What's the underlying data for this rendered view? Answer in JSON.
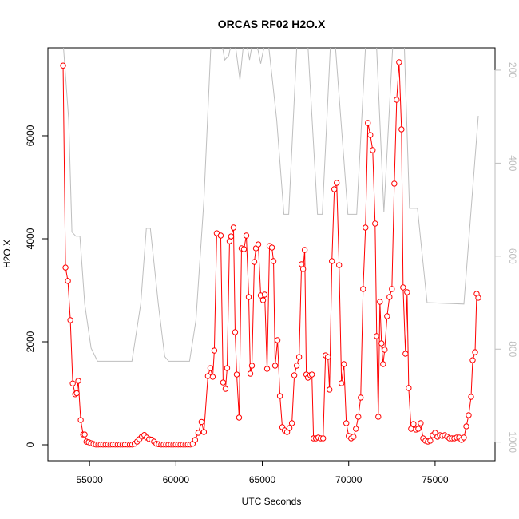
{
  "chart_data": {
    "type": "line",
    "title": "ORCAS RF02 H2O.X",
    "x_label": "UTC Seconds",
    "y_label": "H2O.X",
    "xlim": [
      52590,
      78470
    ],
    "xticks": [
      55000,
      60000,
      65000,
      70000,
      75000
    ],
    "ylim": [
      -310,
      7705
    ],
    "yticks": [
      0,
      2000,
      4000,
      6000
    ],
    "y2lim": [
      1040,
      152
    ],
    "y2ticks": [
      200,
      400,
      600,
      800,
      1000
    ],
    "series": [
      {
        "color": "#ff0000",
        "markers": true,
        "x": [
          53470,
          53610,
          53750,
          53890,
          54030,
          54170,
          54260,
          54350,
          54490,
          54630,
          54720,
          54820,
          54950,
          55090,
          55230,
          55370,
          55510,
          55650,
          55790,
          55930,
          56070,
          56210,
          56350,
          56490,
          56630,
          56770,
          56910,
          57050,
          57190,
          57330,
          57470,
          57610,
          57750,
          57890,
          58030,
          58170,
          58310,
          58450,
          58590,
          58730,
          58870,
          59010,
          59150,
          59290,
          59430,
          59570,
          59710,
          59850,
          59990,
          60130,
          60270,
          60410,
          60550,
          60690,
          60830,
          60970,
          61111,
          61296,
          61481,
          61620,
          61852,
          61991,
          62130,
          62222,
          62361,
          62593,
          62731,
          62870,
          62963,
          63102,
          63194,
          63333,
          63426,
          63519,
          63657,
          63796,
          63935,
          64074,
          64213,
          64306,
          64398,
          64537,
          64630,
          64769,
          64907,
          65046,
          65139,
          65278,
          65417,
          65556,
          65648,
          65741,
          65880,
          66019,
          66157,
          66296,
          66435,
          66574,
          66713,
          66852,
          66991,
          67130,
          67269,
          67361,
          67454,
          67546,
          67639,
          67778,
          67870,
          67963,
          68102,
          68241,
          68380,
          68519,
          68657,
          68796,
          68889,
          69028,
          69167,
          69306,
          69444,
          69583,
          69722,
          69861,
          70000,
          70139,
          70278,
          70417,
          70556,
          70694,
          70833,
          70972,
          71111,
          71250,
          71389,
          71528,
          71620,
          71713,
          71806,
          71898,
          71991,
          72083,
          72222,
          72361,
          72500,
          72639,
          72778,
          72917,
          73056,
          73148,
          73287,
          73380,
          73472,
          73611,
          73750,
          73889,
          74028,
          74167,
          74306,
          74444,
          74583,
          74722,
          74861,
          75000,
          75139,
          75278,
          75417,
          75556,
          75694,
          75833,
          75972,
          76111,
          76250,
          76389,
          76528,
          76667,
          76806,
          76944,
          77083,
          77176,
          77315,
          77407,
          77500
        ],
        "values": [
          7360,
          3440,
          3180,
          2420,
          1190,
          980,
          1000,
          1240,
          480,
          200,
          200,
          60,
          50,
          30,
          15,
          5,
          5,
          5,
          5,
          5,
          5,
          5,
          5,
          5,
          5,
          5,
          5,
          5,
          5,
          5,
          5,
          20,
          60,
          110,
          160,
          190,
          140,
          110,
          100,
          60,
          20,
          10,
          5,
          5,
          5,
          5,
          5,
          5,
          5,
          5,
          5,
          5,
          5,
          5,
          5,
          20,
          93,
          233,
          443,
          248,
          1333,
          1488,
          1318,
          1829,
          4108,
          4062,
          1209,
          1085,
          1488,
          3953,
          4046,
          4217,
          2186,
          1364,
          527,
          3814,
          3798,
          4062,
          2868,
          1380,
          1535,
          3550,
          3814,
          3891,
          2899,
          2806,
          2915,
          1473,
          3860,
          3829,
          3566,
          1535,
          2031,
          946,
          341,
          279,
          248,
          326,
          419,
          1349,
          1535,
          1705,
          3504,
          3411,
          3783,
          1364,
          1302,
          1349,
          1364,
          124,
          124,
          140,
          124,
          124,
          1736,
          1705,
          1070,
          3566,
          4961,
          5085,
          3488,
          1194,
          1566,
          419,
          171,
          124,
          155,
          310,
          543,
          915,
          3023,
          4217,
          6248,
          6016,
          5721,
          4295,
          2109,
          543,
          2775,
          1969,
          1566,
          1845,
          2496,
          2868,
          3023,
          5070,
          6698,
          7426,
          6124,
          3054,
          1767,
          2961,
          1101,
          310,
          403,
          295,
          310,
          419,
          124,
          78,
          62,
          78,
          186,
          233,
          155,
          186,
          171,
          186,
          155,
          124,
          124,
          124,
          140,
          140,
          93,
          140,
          357,
          574,
          930,
          1643,
          1798,
          2930,
          2853
        ]
      },
      {
        "color": "#bebebe",
        "axis": "y2",
        "markers": false,
        "x": [
          53426,
          53796,
          53981,
          54213,
          54444,
          54722,
          55093,
          55463,
          57454,
          57963,
          58287,
          58519,
          58981,
          59352,
          59583,
          60787,
          61157,
          61620,
          62037,
          62546,
          62824,
          63056,
          63333,
          63704,
          63981,
          64259,
          64537,
          64907,
          65278,
          65833,
          66250,
          66528,
          67037,
          67593,
          68194,
          68472,
          68981,
          69167,
          69722,
          69954,
          70463,
          71019,
          71574,
          72037,
          72593,
          73194,
          73519,
          73981,
          74537,
          76667,
          77500
        ],
        "values": [
          117,
          307,
          548,
          557,
          557,
          703,
          798,
          826,
          826,
          703,
          540,
          540,
          703,
          816,
          826,
          826,
          738,
          479,
          134,
          117,
          178,
          169,
          117,
          221,
          117,
          178,
          117,
          186,
          117,
          307,
          510,
          510,
          117,
          117,
          510,
          510,
          117,
          117,
          393,
          510,
          510,
          117,
          117,
          505,
          117,
          117,
          497,
          497,
          700,
          703,
          298
        ]
      }
    ]
  }
}
